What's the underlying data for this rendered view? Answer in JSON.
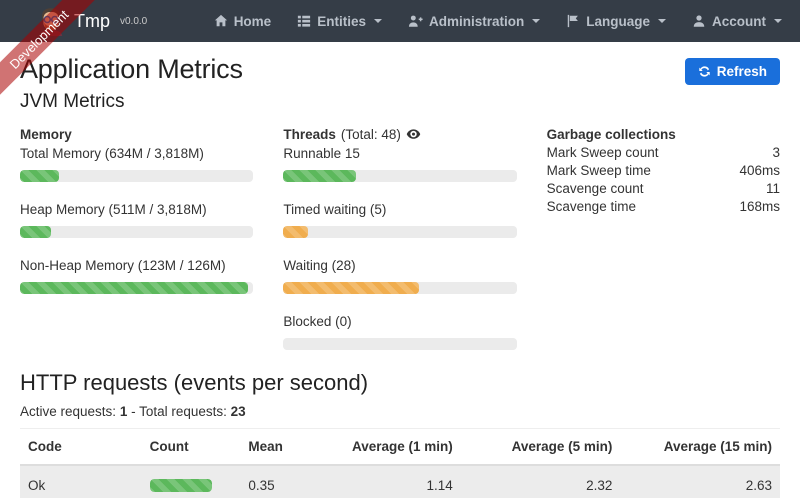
{
  "navbar": {
    "brand": "Tmp",
    "version": "v0.0.0",
    "items": [
      {
        "label": "Home",
        "icon": "home-icon",
        "caret": false
      },
      {
        "label": "Entities",
        "icon": "list-icon",
        "caret": true
      },
      {
        "label": "Administration",
        "icon": "user-plus-icon",
        "caret": true
      },
      {
        "label": "Language",
        "icon": "flag-icon",
        "caret": true
      },
      {
        "label": "Account",
        "icon": "user-icon",
        "caret": true
      }
    ]
  },
  "ribbon": {
    "label": "Development"
  },
  "page": {
    "title": "Application Metrics",
    "jvm_section_title": "JVM Metrics",
    "refresh_label": "Refresh"
  },
  "jvm": {
    "memory": {
      "header": "Memory",
      "bars": [
        {
          "label": "Total Memory (634M / 3,818M)",
          "percent": 16.6,
          "color": "#5cb85c"
        },
        {
          "label": "Heap Memory (511M / 3,818M)",
          "percent": 13.4,
          "color": "#5cb85c"
        },
        {
          "label": "Non-Heap Memory (123M / 126M)",
          "percent": 97.6,
          "color": "#5cb85c"
        }
      ]
    },
    "threads": {
      "header": "Threads",
      "total": "(Total: 48)",
      "bars": [
        {
          "label": "Runnable 15",
          "percent": 31.25,
          "color": "#5cb85c"
        },
        {
          "label": "Timed waiting (5)",
          "percent": 10.4,
          "color": "#f0ad4e"
        },
        {
          "label": "Waiting (28)",
          "percent": 58.3,
          "color": "#f0ad4e"
        },
        {
          "label": "Blocked (0)",
          "percent": 0,
          "color": "#f0ad4e"
        }
      ]
    },
    "gc": {
      "header": "Garbage collections",
      "rows": [
        {
          "label": "Mark Sweep count",
          "value": "3"
        },
        {
          "label": "Mark Sweep time",
          "value": "406ms"
        },
        {
          "label": "Scavenge count",
          "value": "11"
        },
        {
          "label": "Scavenge time",
          "value": "168ms"
        }
      ]
    }
  },
  "http": {
    "title": "HTTP requests (events per second)",
    "active_label": "Active requests:",
    "active_value": "1",
    "separator": "-",
    "total_label": "Total requests:",
    "total_value": "23",
    "table": {
      "headers": [
        "Code",
        "Count",
        "Mean",
        "Average (1 min)",
        "Average (5 min)",
        "Average (15 min)"
      ],
      "row": {
        "code": "Ok",
        "count_percent": 100,
        "count_color": "#5cb85c",
        "mean": "0.35",
        "avg1": "1.14",
        "avg5": "2.32",
        "avg15": "2.63"
      }
    }
  },
  "colors": {
    "navbar_bg": "#353d47",
    "primary_button": "#1a6fdb",
    "success_bar": "#5cb85c",
    "warning_bar": "#f0ad4e",
    "ribbon_bg": "rgba(170,0,0,0.55)",
    "row_stripe": "#ececec"
  }
}
